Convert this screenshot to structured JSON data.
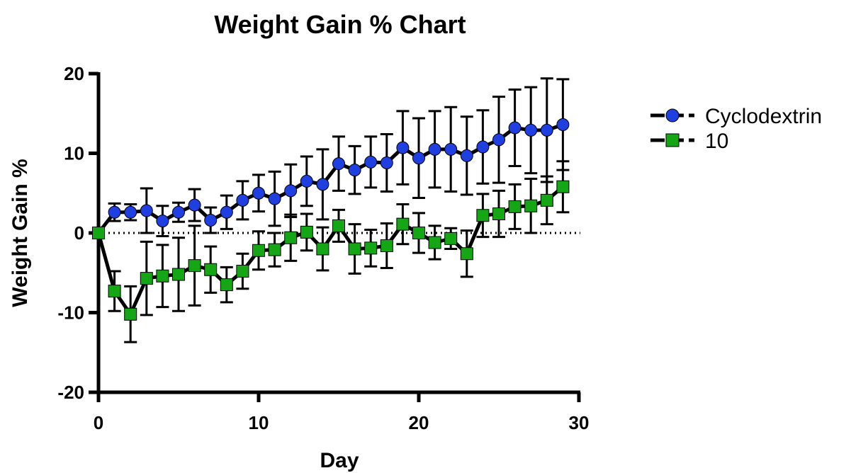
{
  "chart_data": {
    "type": "line",
    "title": "Weight Gain % Chart",
    "xlabel": "Day",
    "ylabel": "Weight Gain %",
    "xlim": [
      0,
      30
    ],
    "ylim": [
      -20,
      20
    ],
    "xticks": [
      0,
      10,
      20,
      30
    ],
    "yticks": [
      -20,
      -10,
      0,
      10,
      20
    ],
    "x_tick_labels": [
      "0",
      "10",
      "20",
      "30"
    ],
    "y_tick_labels": [
      "-20",
      "-10",
      "0",
      "10",
      "20"
    ],
    "reference_line": 0,
    "grid": false,
    "legend_position": "right",
    "series": [
      {
        "name": "Cyclodextrin",
        "color": "#1f3fe0",
        "marker": "circle",
        "x": [
          0,
          1,
          2,
          3,
          4,
          5,
          6,
          7,
          8,
          9,
          10,
          11,
          12,
          13,
          14,
          15,
          16,
          17,
          18,
          19,
          20,
          21,
          22,
          23,
          24,
          25,
          26,
          27,
          28,
          29
        ],
        "y": [
          0,
          2.6,
          2.6,
          2.8,
          1.5,
          2.6,
          3.5,
          1.6,
          2.6,
          4.1,
          5.0,
          4.3,
          5.3,
          6.5,
          6.1,
          8.7,
          7.9,
          8.9,
          8.8,
          10.7,
          9.4,
          10.5,
          10.5,
          9.7,
          10.8,
          11.7,
          13.2,
          12.9,
          12.9,
          13.6
        ],
        "err": [
          0,
          1.1,
          1.0,
          2.8,
          1.9,
          1.2,
          2.0,
          1.6,
          2.1,
          2.4,
          2.3,
          3.4,
          3.3,
          3.1,
          4.4,
          3.4,
          3.0,
          3.2,
          3.6,
          4.6,
          5.0,
          4.8,
          5.3,
          4.9,
          4.6,
          5.4,
          4.8,
          5.4,
          6.5,
          5.7
        ]
      },
      {
        "name": "10",
        "color": "#14a614",
        "marker": "square",
        "x": [
          0,
          1,
          2,
          3,
          4,
          5,
          6,
          7,
          8,
          9,
          10,
          11,
          12,
          13,
          14,
          15,
          16,
          17,
          18,
          19,
          20,
          21,
          22,
          23,
          24,
          25,
          26,
          27,
          28,
          29
        ],
        "y": [
          0,
          -7.3,
          -10.2,
          -5.7,
          -5.4,
          -5.2,
          -4.1,
          -4.6,
          -6.5,
          -4.8,
          -2.2,
          -2.1,
          -0.6,
          0.1,
          -2.0,
          0.9,
          -2.0,
          -1.9,
          -1.6,
          1.1,
          0.0,
          -1.2,
          -0.7,
          -2.6,
          2.2,
          2.4,
          3.3,
          3.4,
          4.1,
          5.8
        ],
        "err": [
          0,
          2.5,
          3.5,
          4.6,
          3.9,
          4.6,
          5.0,
          2.9,
          2.2,
          2.2,
          2.4,
          2.1,
          2.9,
          2.3,
          2.7,
          2.0,
          3.1,
          2.3,
          2.8,
          2.5,
          2.5,
          2.1,
          1.3,
          2.9,
          2.7,
          2.9,
          2.8,
          3.4,
          3.0,
          3.2
        ]
      }
    ]
  }
}
